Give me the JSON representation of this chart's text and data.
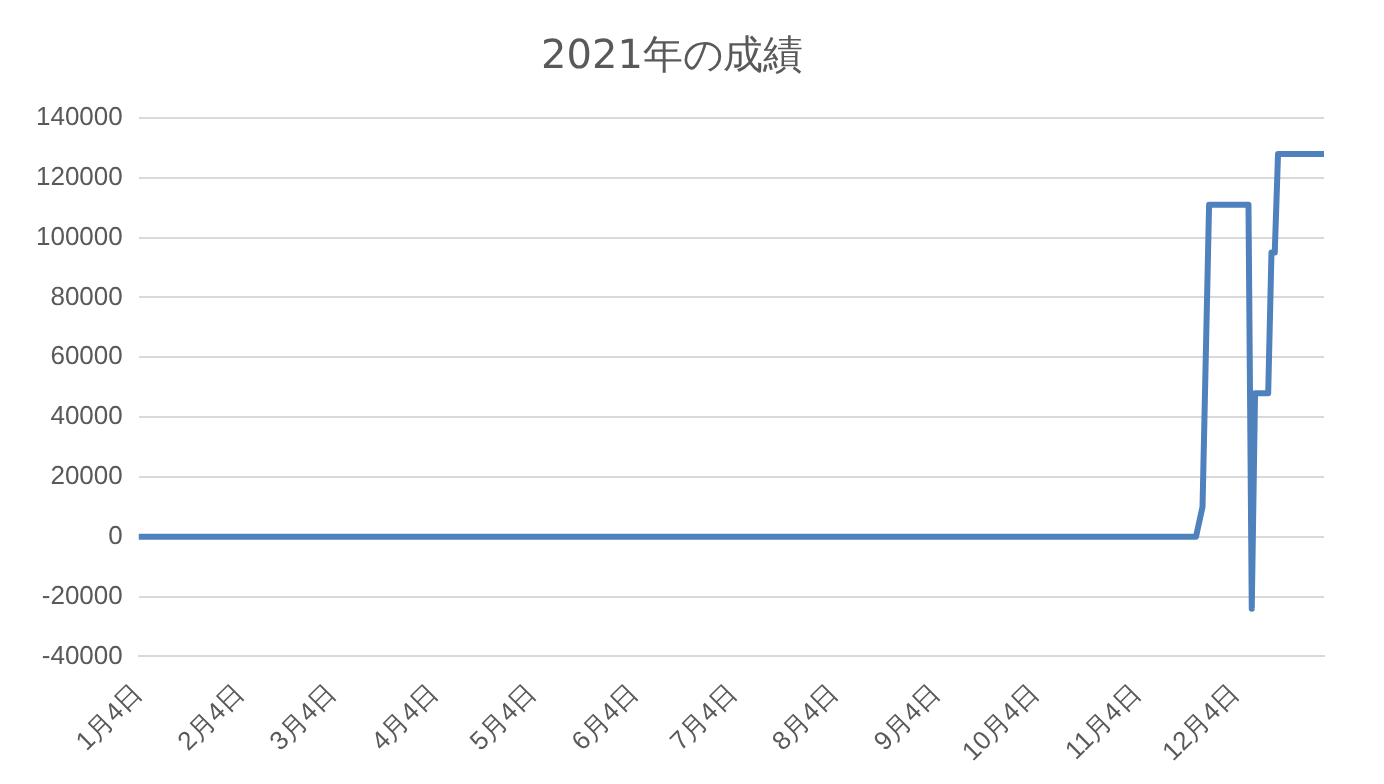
{
  "chart_data": {
    "type": "line",
    "title": "2021年の成績",
    "x": [
      "2021-01-04",
      "2021-11-22",
      "2021-11-24",
      "2021-11-26",
      "2021-12-08",
      "2021-12-09",
      "2021-12-10",
      "2021-12-14",
      "2021-12-15",
      "2021-12-16",
      "2021-12-17",
      "2021-12-31"
    ],
    "series": [
      {
        "color": "#4f81bd",
        "values": [
          0,
          0,
          10000,
          111000,
          111000,
          -24000,
          48000,
          48000,
          95000,
          95000,
          128000,
          128000
        ]
      }
    ],
    "xlim": [
      "2021-01-04",
      "2021-12-31"
    ],
    "xticks": [
      {
        "value": "2021-01-04",
        "label": "1月4日"
      },
      {
        "value": "2021-02-04",
        "label": "2月4日"
      },
      {
        "value": "2021-03-04",
        "label": "3月4日"
      },
      {
        "value": "2021-04-04",
        "label": "4月4日"
      },
      {
        "value": "2021-05-04",
        "label": "5月4日"
      },
      {
        "value": "2021-06-04",
        "label": "6月4日"
      },
      {
        "value": "2021-07-04",
        "label": "7月4日"
      },
      {
        "value": "2021-08-04",
        "label": "8月4日"
      },
      {
        "value": "2021-09-04",
        "label": "9月4日"
      },
      {
        "value": "2021-10-04",
        "label": "10月4日"
      },
      {
        "value": "2021-11-04",
        "label": "11月4日"
      },
      {
        "value": "2021-12-04",
        "label": "12月4日"
      }
    ],
    "ylim": [
      -40000,
      140000
    ],
    "yticks": [
      -40000,
      -20000,
      0,
      20000,
      40000,
      60000,
      80000,
      100000,
      120000,
      140000
    ],
    "grid": "y",
    "legend": false,
    "marker": "none",
    "line_style": "solid"
  }
}
